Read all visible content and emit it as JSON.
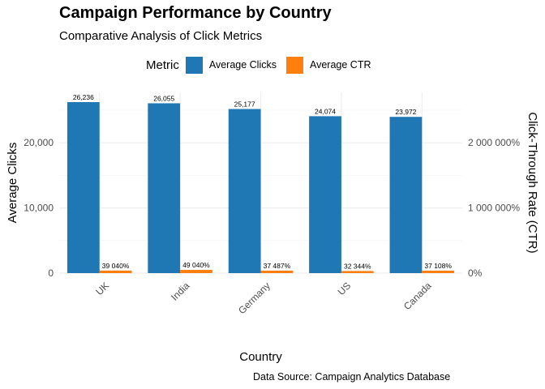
{
  "chart_data": {
    "type": "bar",
    "title": "Campaign Performance by Country",
    "subtitle": "Comparative Analysis of Click Metrics",
    "caption": "Data Source: Campaign Analytics Database",
    "xlabel": "Country",
    "ylabel": "Average Clicks",
    "y2label": "Click-Through Rate (CTR)",
    "categories": [
      "UK",
      "India",
      "Germany",
      "US",
      "Canada"
    ],
    "ylim": [
      0,
      26236
    ],
    "y_ticks": [
      0,
      10000,
      20000
    ],
    "y_tick_labels": [
      "0",
      "10,000",
      "20,000"
    ],
    "y2_ticks": [
      0,
      10000,
      20000
    ],
    "y2_tick_labels": [
      "0%",
      "1 000 000%",
      "2 000 000%"
    ],
    "grid": true,
    "legend": {
      "title": "Metric",
      "position": "top"
    },
    "series": [
      {
        "name": "Average Clicks",
        "color": "#1f77b4",
        "values": [
          26236,
          26055,
          25177,
          24074,
          23972
        ],
        "labels": [
          "26,236",
          "26,055",
          "25,177",
          "24,074",
          "23,972"
        ]
      },
      {
        "name": "Average CTR",
        "color": "#ff7f0e",
        "values": [
          390.4,
          490.4,
          374.87,
          323.44,
          371.08
        ],
        "labels": [
          "39 040%",
          "49 040%",
          "37 487%",
          "32 344%",
          "37 108%"
        ]
      }
    ]
  }
}
